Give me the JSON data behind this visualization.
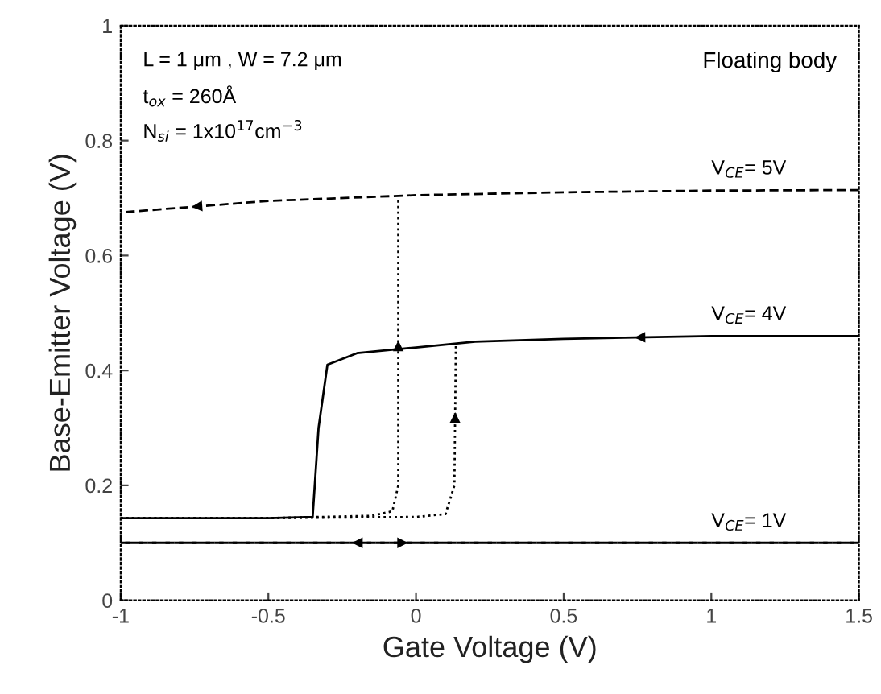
{
  "chart_data": {
    "type": "line",
    "xlabel": "Gate Voltage (V)",
    "ylabel": "Base-Emitter Voltage (V)",
    "xlim": [
      -1,
      1.5
    ],
    "ylim": [
      0,
      1
    ],
    "xticks": [
      -1,
      -0.5,
      0,
      0.5,
      1,
      1.5
    ],
    "yticks": [
      0,
      0.2,
      0.4,
      0.6,
      0.8,
      1
    ],
    "grid": false,
    "legend": false,
    "marker": "none",
    "series": [
      {
        "name": "V$_{CE}$= 5V",
        "color": "#000000",
        "line_style": "dashed",
        "x": [
          1.5,
          1.0,
          0.5,
          0,
          -0.5,
          -1
        ],
        "values": [
          0.714,
          0.713,
          0.71,
          0.705,
          0.695,
          0.675
        ]
      },
      {
        "color": "#000000",
        "line_style": "dotted",
        "x": [
          -1,
          -0.5,
          -0.15,
          -0.08,
          -0.06,
          -0.06
        ],
        "values": [
          0.143,
          0.143,
          0.147,
          0.155,
          0.2,
          0.7
        ]
      },
      {
        "name": "V$_{CE}$= 4V",
        "color": "#000000",
        "line_style": "solid",
        "x": [
          1.5,
          1.0,
          0.5,
          0.2,
          0,
          -0.2,
          -0.3,
          -0.33,
          -0.35,
          -0.5,
          -1
        ],
        "values": [
          0.46,
          0.46,
          0.455,
          0.45,
          0.44,
          0.43,
          0.41,
          0.3,
          0.145,
          0.143,
          0.143
        ]
      },
      {
        "color": "#000000",
        "line_style": "dotted",
        "x": [
          -1,
          -0.5,
          0.0,
          0.1,
          0.13,
          0.135
        ],
        "values": [
          0.143,
          0.143,
          0.145,
          0.15,
          0.2,
          0.445
        ]
      },
      {
        "name": "V$_{CE}$= 1V",
        "color": "#000000",
        "line_style": "dashed",
        "x": [
          -1,
          0.9,
          1.5
        ],
        "values": [
          0.1,
          0.1,
          0.1
        ]
      },
      {
        "color": "#000000",
        "line_style": "dashed",
        "x": [
          1.5,
          0.6,
          -1
        ],
        "values": [
          0.1,
          0.1,
          0.1
        ]
      }
    ],
    "annotations": [
      "L = 1 μm , W = 7.2 μm",
      "t$_{ox}$ = 260Å",
      "N$_{si}$ = 1x10$^{17}$cm$^{−3}$",
      "Floating body"
    ]
  }
}
